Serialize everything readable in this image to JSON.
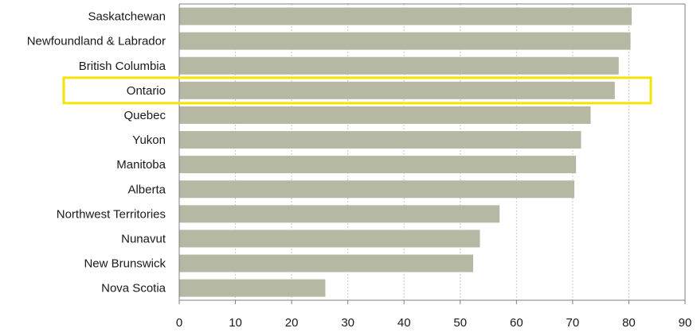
{
  "chart_data": {
    "type": "bar",
    "orientation": "horizontal",
    "categories": [
      "Saskatchewan",
      "Newfoundland & Labrador",
      "British Columbia",
      "Ontario",
      "Quebec",
      "Yukon",
      "Manitoba",
      "Alberta",
      "Northwest Territories",
      "Nunavut",
      "New Brunswick",
      "Nova Scotia"
    ],
    "values": [
      80.5,
      80.3,
      78.2,
      77.5,
      73.2,
      71.5,
      70.6,
      70.3,
      57.0,
      53.5,
      52.3,
      26.0
    ],
    "xlim": [
      0,
      90
    ],
    "xticks": [
      0,
      10,
      20,
      30,
      40,
      50,
      60,
      70,
      80,
      90
    ],
    "grid": "vertical dashed",
    "highlight": "Ontario",
    "colors": {
      "bar": "#b5b8a2",
      "highlight_box": "#f2e600",
      "grid": "#c8c8c8",
      "axis": "#7f7f7f"
    }
  }
}
